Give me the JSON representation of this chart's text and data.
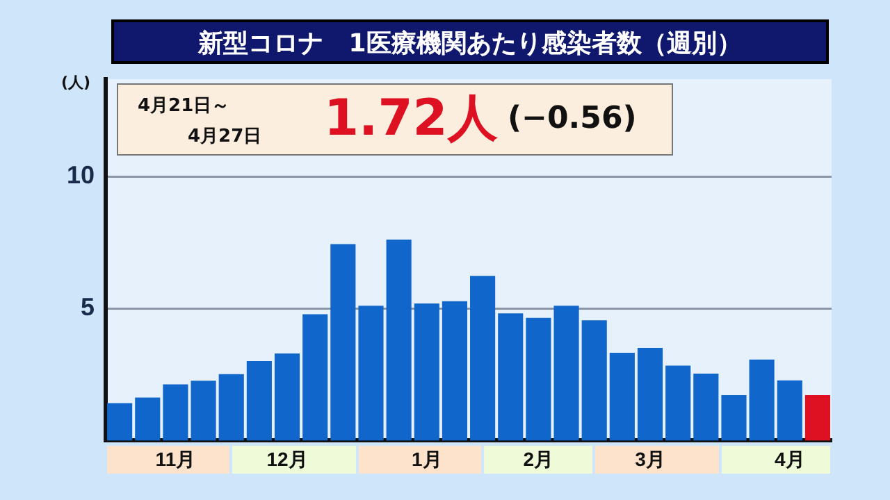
{
  "chart_data": {
    "type": "bar",
    "title": "新型コロナ　1医療機関あたり感染者数（週別）",
    "ylabel": "(人)",
    "categories": [
      null,
      null,
      "11月",
      null,
      null,
      null,
      "12月",
      null,
      null,
      null,
      null,
      "1月",
      null,
      null,
      null,
      "2月",
      null,
      null,
      null,
      "3月",
      null,
      null,
      null,
      null,
      "4月",
      null
    ],
    "values": [
      1.42,
      1.63,
      2.13,
      2.27,
      2.52,
      3.01,
      3.3,
      4.79,
      7.45,
      5.11,
      7.62,
      5.2,
      5.28,
      6.24,
      4.82,
      4.65,
      5.11,
      4.56,
      3.33,
      3.51,
      2.84,
      2.54,
      1.72,
      3.07,
      2.28,
      1.72
    ],
    "colors": [
      "#1166cc",
      "#1166cc",
      "#1166cc",
      "#1166cc",
      "#1166cc",
      "#1166cc",
      "#1166cc",
      "#1166cc",
      "#1166cc",
      "#1166cc",
      "#1166cc",
      "#1166cc",
      "#1166cc",
      "#1166cc",
      "#1166cc",
      "#1166cc",
      "#1166cc",
      "#1166cc",
      "#1166cc",
      "#1166cc",
      "#1166cc",
      "#1166cc",
      "#1166cc",
      "#1166cc",
      "#1166cc",
      "#dd1122"
    ],
    "ylim": [
      0,
      13.7
    ],
    "yticks": [
      5,
      10
    ],
    "grid": "y",
    "legend": false,
    "annotations": [
      "4月21日～",
      "4月27日",
      "1.72人",
      "(−0.56)"
    ]
  }
}
